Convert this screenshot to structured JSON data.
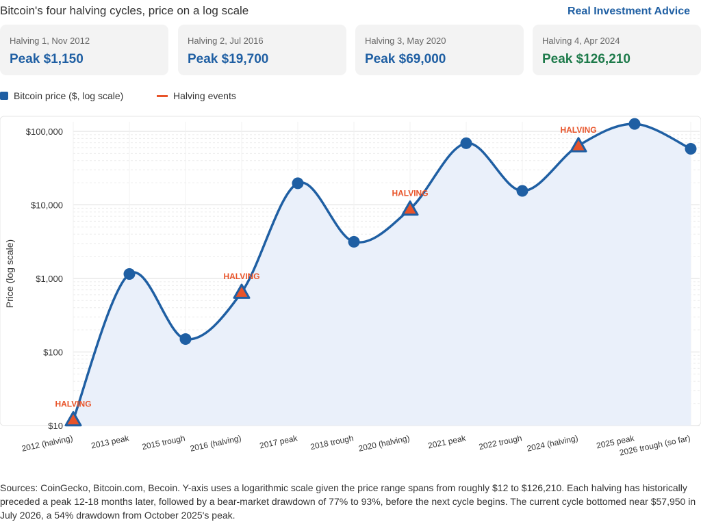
{
  "header": {
    "title": "Bitcoin's four halving cycles, price on a log scale",
    "brand": "Real Investment Advice"
  },
  "cards": [
    {
      "label": "Halving 1, Nov 2012",
      "value": "Peak $1,150",
      "color": "#1f5fa3"
    },
    {
      "label": "Halving 2, Jul 2016",
      "value": "Peak $19,700",
      "color": "#1f5fa3"
    },
    {
      "label": "Halving 3, May 2020",
      "value": "Peak $69,000",
      "color": "#1f5fa3"
    },
    {
      "label": "Halving 4, Apr 2024",
      "value": "Peak $126,210",
      "color": "#1d7a4a"
    }
  ],
  "legend": {
    "price_label": "Bitcoin price ($, log scale)",
    "halving_label": "Halving events"
  },
  "chart_data": {
    "type": "line",
    "ylabel": "Price (log scale)",
    "yscale": "log",
    "ylim": [
      10,
      150000
    ],
    "yticks": [
      10,
      100,
      1000,
      10000,
      100000
    ],
    "ytick_labels": [
      "$10",
      "$100",
      "$1,000",
      "$10,000",
      "$100,000"
    ],
    "grid": true,
    "categories": [
      "2012 (halving)",
      "2013 peak",
      "2015 trough",
      "2016 (halving)",
      "2017 peak",
      "2018 trough",
      "2020 (halving)",
      "2021 peak",
      "2022 trough",
      "2024 (halving)",
      "2025 peak",
      "2026 trough (so far)"
    ],
    "values": [
      12,
      1150,
      150,
      650,
      19700,
      3150,
      8800,
      69000,
      15500,
      64000,
      126210,
      57950
    ],
    "halving_indices": [
      0,
      3,
      6,
      9
    ],
    "halving_label": "HALVING",
    "colors": {
      "line": "#1f5fa3",
      "fill": "#eaf0fa",
      "halving": "#e8542a"
    }
  },
  "footer": {
    "note": "Sources: CoinGecko, Bitcoin.com, Becoin. Y-axis uses a logarithmic scale given the price range spans from roughly $12 to $126,210. Each halving has historically preceded a peak 12-18 months later, followed by a bear-market drawdown of 77% to 93%, before the next cycle begins. The current cycle bottomed near $57,950 in July 2026, a 54% drawdown from October 2025's peak."
  }
}
